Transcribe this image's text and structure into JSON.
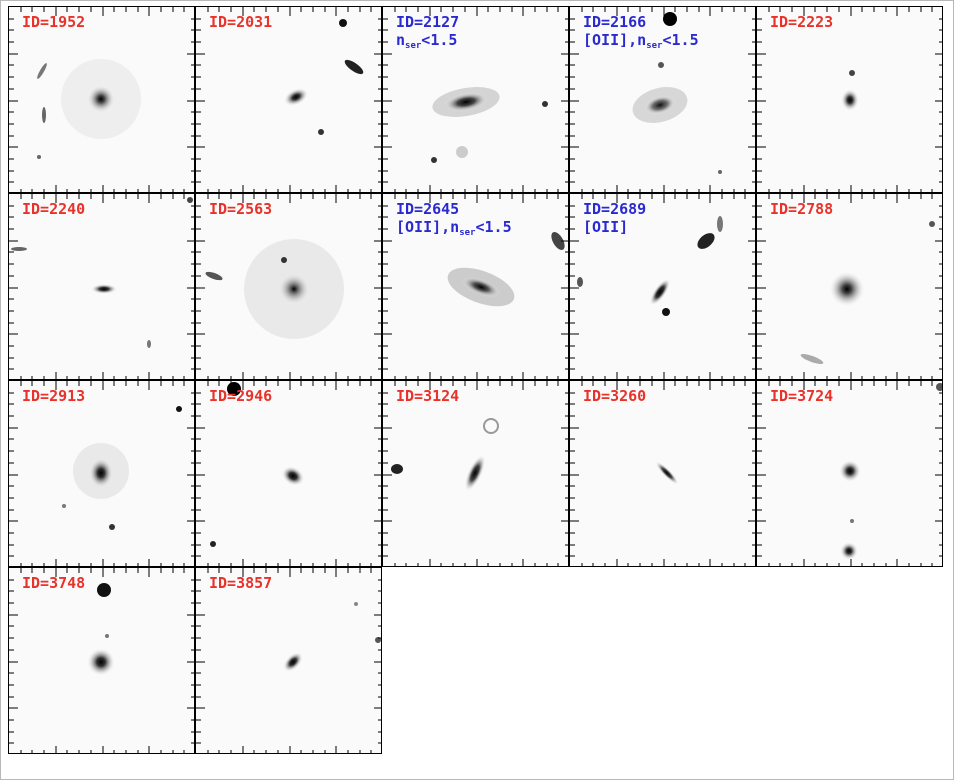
{
  "colors": {
    "red_label": "#e8322a",
    "blue_label": "#2a2ad0",
    "frame": "#000000"
  },
  "panels": [
    {
      "id": "ID=1952",
      "color": "red"
    },
    {
      "id": "ID=2031",
      "color": "red"
    },
    {
      "id": "ID=2127",
      "note_pre": "n",
      "note_sub": "ser",
      "note_post": "<1.5",
      "color": "blue"
    },
    {
      "id": "ID=2166",
      "note_pre": "[OII],n",
      "note_sub": "ser",
      "note_post": "<1.5",
      "color": "blue"
    },
    {
      "id": "ID=2223",
      "color": "red"
    },
    {
      "id": "ID=2240",
      "color": "red"
    },
    {
      "id": "ID=2563",
      "color": "red"
    },
    {
      "id": "ID=2645",
      "note_pre": "[OII],n",
      "note_sub": "ser",
      "note_post": "<1.5",
      "color": "blue"
    },
    {
      "id": "ID=2689",
      "note_pre": "[OII]",
      "color": "blue"
    },
    {
      "id": "ID=2788",
      "color": "red"
    },
    {
      "id": "ID=2913",
      "color": "red"
    },
    {
      "id": "ID=2946",
      "color": "red"
    },
    {
      "id": "ID=3124",
      "color": "red"
    },
    {
      "id": "ID=3260",
      "color": "red"
    },
    {
      "id": "ID=3724",
      "color": "red"
    },
    {
      "id": "ID=3748",
      "color": "red"
    },
    {
      "id": "ID=3857",
      "color": "red"
    }
  ]
}
